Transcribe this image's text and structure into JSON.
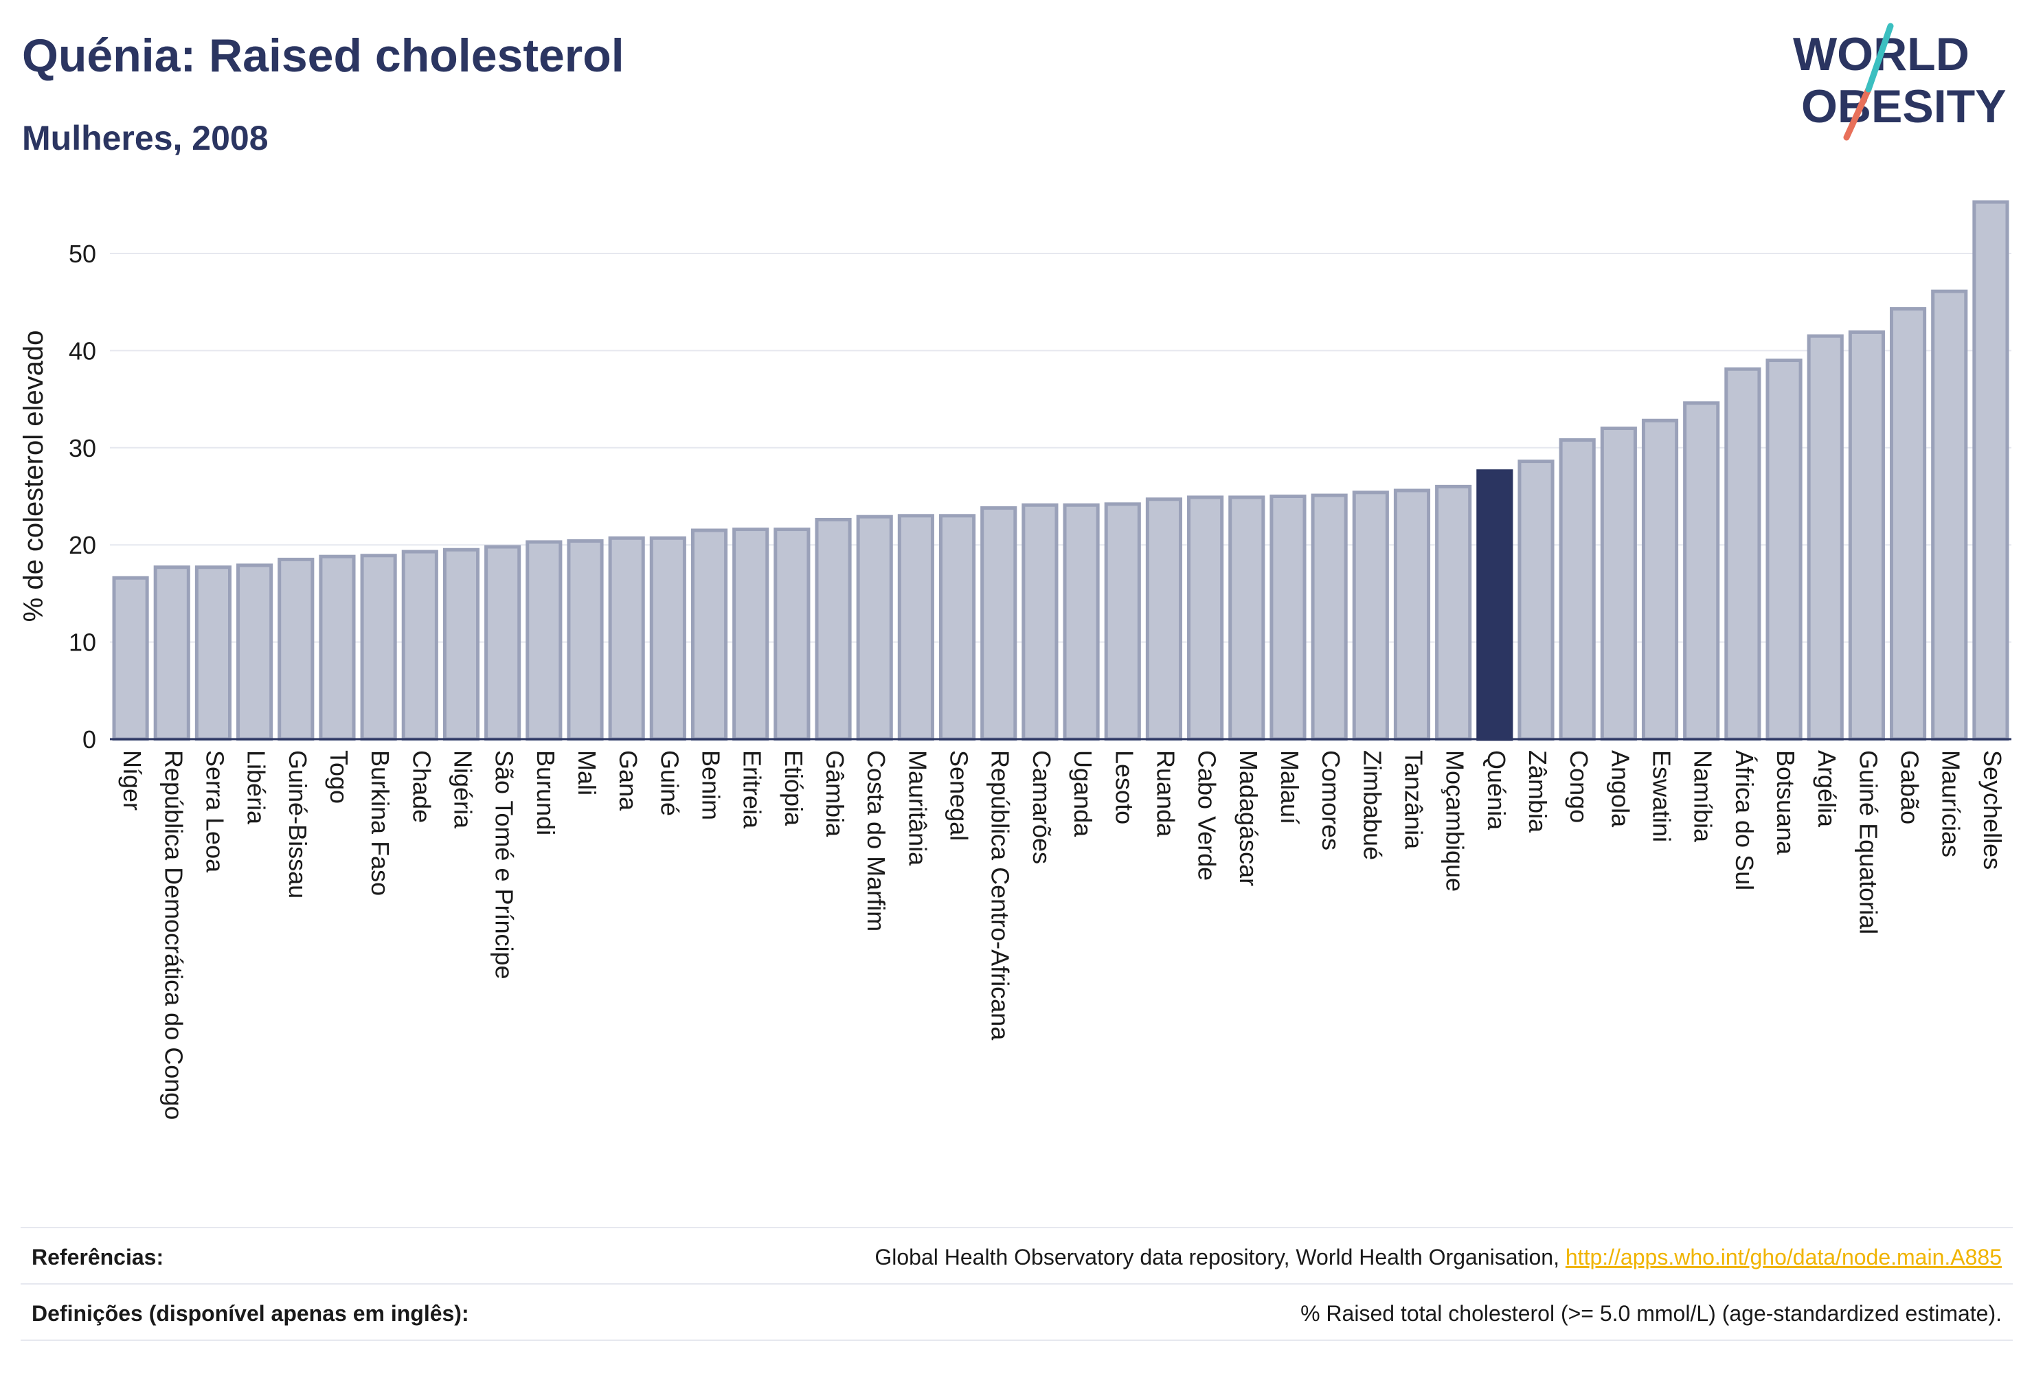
{
  "header": {
    "title": "Quénia: Raised cholesterol",
    "subtitle": "Mulheres, 2008"
  },
  "logo": {
    "line1": "WORLD",
    "line2": "OBESITY",
    "colors": {
      "text": "#2b3561",
      "slash_teal": "#3bbfc0",
      "slash_red": "#e8705a"
    }
  },
  "chart_data": {
    "type": "bar",
    "title": "",
    "xlabel": "",
    "ylabel": "% de colesterol elevado",
    "ylim": [
      0,
      57
    ],
    "yticks": [
      0,
      10,
      20,
      30,
      40,
      50
    ],
    "grid": true,
    "highlight": "Quénia",
    "colors": {
      "bar": "#bfc4d3",
      "bar_edge": "#9aa1b9",
      "highlight": "#2b3561"
    },
    "categories": [
      "Níger",
      "República Democrática do Congo",
      "Serra Leoa",
      "Libéria",
      "Guiné-Bissau",
      "Togo",
      "Burkina Faso",
      "Chade",
      "Nigéria",
      "São Tomé e Príncipe",
      "Burundi",
      "Mali",
      "Gana",
      "Guiné",
      "Benim",
      "Eritreia",
      "Etiópia",
      "Gâmbia",
      "Costa do Marfim",
      "Mauritânia",
      "Senegal",
      "República Centro-Africana",
      "Camarões",
      "Uganda",
      "Lesoto",
      "Ruanda",
      "Cabo Verde",
      "Madagáscar",
      "Malauí",
      "Comores",
      "Zimbabué",
      "Tanzânia",
      "Moçambique",
      "Quénia",
      "Zâmbia",
      "Congo",
      "Angola",
      "Eswatini",
      "Namíbia",
      "África do Sul",
      "Botsuana",
      "Argélia",
      "Guiné Equatorial",
      "Gabão",
      "Maurícias",
      "Seychelles"
    ],
    "values": [
      16.6,
      17.7,
      17.7,
      17.9,
      18.5,
      18.8,
      18.9,
      19.3,
      19.5,
      19.8,
      20.3,
      20.4,
      20.7,
      20.7,
      21.5,
      21.6,
      21.6,
      22.6,
      22.9,
      23.0,
      23.0,
      23.8,
      24.1,
      24.1,
      24.2,
      24.7,
      24.9,
      24.9,
      25.0,
      25.1,
      25.4,
      25.6,
      26.0,
      27.6,
      28.6,
      30.8,
      32.0,
      32.8,
      34.6,
      38.1,
      39.0,
      41.5,
      41.9,
      44.3,
      46.1,
      55.3
    ]
  },
  "footer": {
    "references_label": "Referências:",
    "references_text": "Global Health Observatory data repository, World Health Organisation, ",
    "references_link": "http://apps.who.int/gho/data/node.main.A885",
    "definitions_label": "Definições (disponível apenas em inglês):",
    "definitions_text": "% Raised total cholesterol (>= 5.0 mmol/L) (age-standardized estimate)."
  }
}
